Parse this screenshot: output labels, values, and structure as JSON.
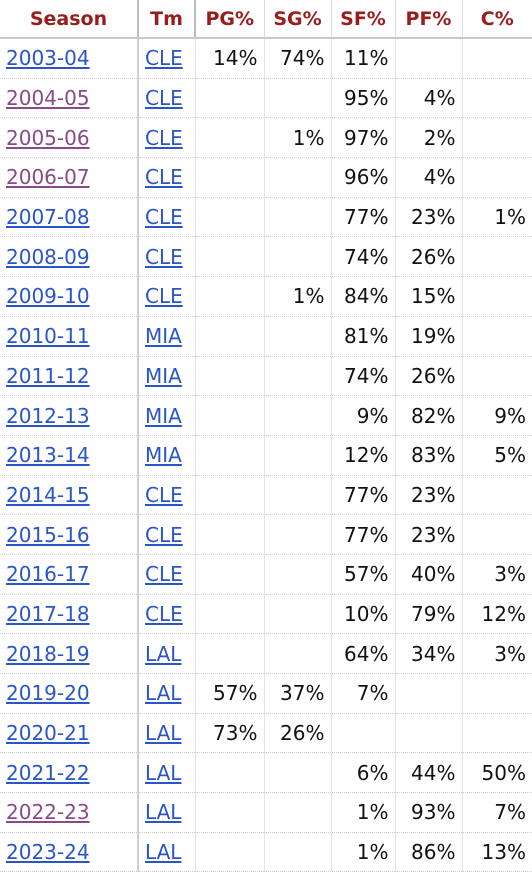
{
  "headers": {
    "season": "Season",
    "tm": "Tm",
    "pg": "PG%",
    "sg": "SG%",
    "sf": "SF%",
    "pf": "PF%",
    "c": "C%"
  },
  "colors": {
    "header_text": "#9a1c1c",
    "link": "#2a55c8",
    "visited_link": "#8a4a8a"
  },
  "rows": [
    {
      "season": "2003-04",
      "visited": false,
      "tm": "CLE",
      "pg": "14%",
      "sg": "74%",
      "sf": "11%",
      "pf": "",
      "c": ""
    },
    {
      "season": "2004-05",
      "visited": true,
      "tm": "CLE",
      "pg": "",
      "sg": "",
      "sf": "95%",
      "pf": "4%",
      "c": ""
    },
    {
      "season": "2005-06",
      "visited": true,
      "tm": "CLE",
      "pg": "",
      "sg": "1%",
      "sf": "97%",
      "pf": "2%",
      "c": ""
    },
    {
      "season": "2006-07",
      "visited": true,
      "tm": "CLE",
      "pg": "",
      "sg": "",
      "sf": "96%",
      "pf": "4%",
      "c": ""
    },
    {
      "season": "2007-08",
      "visited": false,
      "tm": "CLE",
      "pg": "",
      "sg": "",
      "sf": "77%",
      "pf": "23%",
      "c": "1%"
    },
    {
      "season": "2008-09",
      "visited": false,
      "tm": "CLE",
      "pg": "",
      "sg": "",
      "sf": "74%",
      "pf": "26%",
      "c": ""
    },
    {
      "season": "2009-10",
      "visited": false,
      "tm": "CLE",
      "pg": "",
      "sg": "1%",
      "sf": "84%",
      "pf": "15%",
      "c": ""
    },
    {
      "season": "2010-11",
      "visited": false,
      "tm": "MIA",
      "pg": "",
      "sg": "",
      "sf": "81%",
      "pf": "19%",
      "c": ""
    },
    {
      "season": "2011-12",
      "visited": false,
      "tm": "MIA",
      "pg": "",
      "sg": "",
      "sf": "74%",
      "pf": "26%",
      "c": ""
    },
    {
      "season": "2012-13",
      "visited": false,
      "tm": "MIA",
      "pg": "",
      "sg": "",
      "sf": "9%",
      "pf": "82%",
      "c": "9%"
    },
    {
      "season": "2013-14",
      "visited": false,
      "tm": "MIA",
      "pg": "",
      "sg": "",
      "sf": "12%",
      "pf": "83%",
      "c": "5%"
    },
    {
      "season": "2014-15",
      "visited": false,
      "tm": "CLE",
      "pg": "",
      "sg": "",
      "sf": "77%",
      "pf": "23%",
      "c": ""
    },
    {
      "season": "2015-16",
      "visited": false,
      "tm": "CLE",
      "pg": "",
      "sg": "",
      "sf": "77%",
      "pf": "23%",
      "c": ""
    },
    {
      "season": "2016-17",
      "visited": false,
      "tm": "CLE",
      "pg": "",
      "sg": "",
      "sf": "57%",
      "pf": "40%",
      "c": "3%"
    },
    {
      "season": "2017-18",
      "visited": false,
      "tm": "CLE",
      "pg": "",
      "sg": "",
      "sf": "10%",
      "pf": "79%",
      "c": "12%"
    },
    {
      "season": "2018-19",
      "visited": false,
      "tm": "LAL",
      "pg": "",
      "sg": "",
      "sf": "64%",
      "pf": "34%",
      "c": "3%"
    },
    {
      "season": "2019-20",
      "visited": false,
      "tm": "LAL",
      "pg": "57%",
      "sg": "37%",
      "sf": "7%",
      "pf": "",
      "c": ""
    },
    {
      "season": "2020-21",
      "visited": false,
      "tm": "LAL",
      "pg": "73%",
      "sg": "26%",
      "sf": "",
      "pf": "",
      "c": ""
    },
    {
      "season": "2021-22",
      "visited": false,
      "tm": "LAL",
      "pg": "",
      "sg": "",
      "sf": "6%",
      "pf": "44%",
      "c": "50%"
    },
    {
      "season": "2022-23",
      "visited": true,
      "tm": "LAL",
      "pg": "",
      "sg": "",
      "sf": "1%",
      "pf": "93%",
      "c": "7%"
    },
    {
      "season": "2023-24",
      "visited": false,
      "tm": "LAL",
      "pg": "",
      "sg": "",
      "sf": "1%",
      "pf": "86%",
      "c": "13%"
    }
  ]
}
